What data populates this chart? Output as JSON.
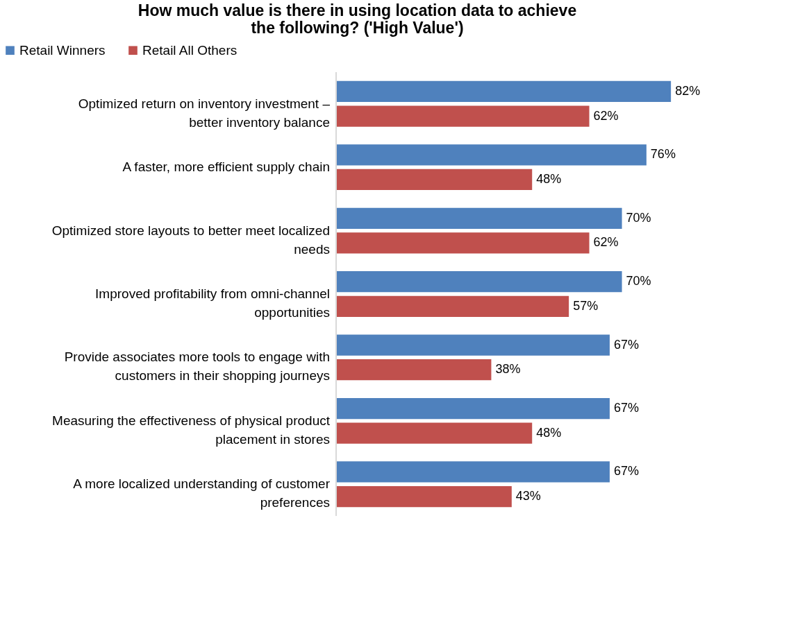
{
  "chart_data": {
    "type": "bar",
    "orientation": "horizontal",
    "title": "How much value is there in using location data to achieve the following? ('High Value')",
    "categories": [
      "Optimized return on inventory investment – better inventory balance",
      "A faster, more efficient supply chain",
      "Optimized store layouts to better meet localized needs",
      "Improved profitability from omni-channel opportunities",
      "Provide associates more tools to engage with customers in their shopping journeys",
      "Measuring the effectiveness of physical product placement in stores",
      "A more localized understanding of customer preferences"
    ],
    "series": [
      {
        "name": "Retail Winners",
        "color": "#4f81bd",
        "values": [
          82,
          76,
          70,
          70,
          67,
          67,
          67
        ],
        "value_labels": [
          "82%",
          "76%",
          "70%",
          "70%",
          "67%",
          "67%",
          "67%"
        ]
      },
      {
        "name": "Retail All Others",
        "color": "#c0504d",
        "values": [
          62,
          48,
          62,
          57,
          38,
          48,
          43
        ],
        "value_labels": [
          "62%",
          "48%",
          "62%",
          "57%",
          "38%",
          "48%",
          "43%"
        ]
      }
    ],
    "legend": "top",
    "grid": false
  }
}
